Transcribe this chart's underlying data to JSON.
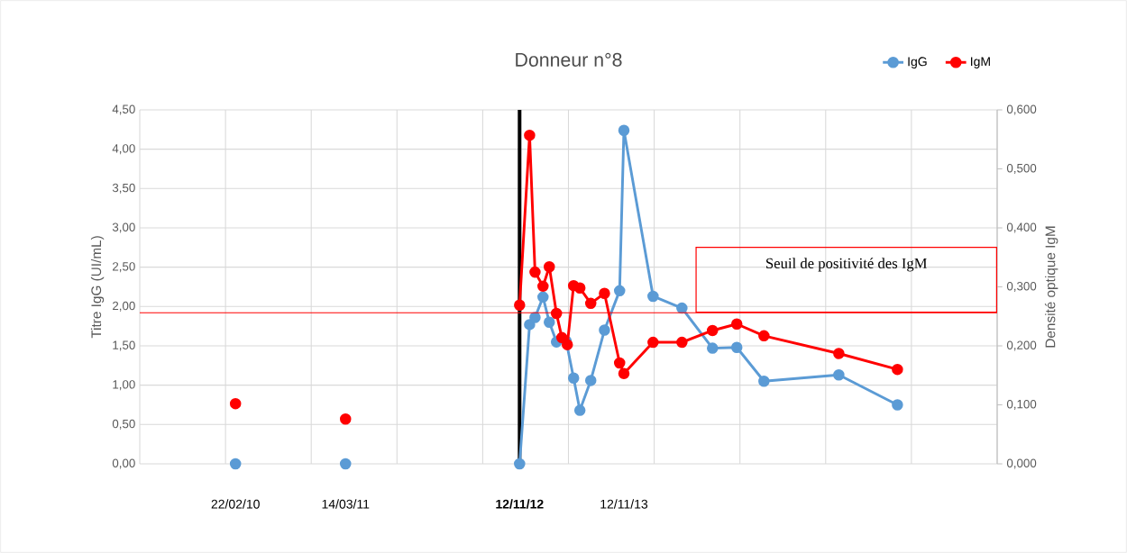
{
  "chart_data": {
    "type": "line",
    "title": "Donneur n°8",
    "ylabel": "Titre IgG (UI/mL)",
    "y2label": "Densité optique IgM",
    "xlim": [
      "2009-03-24",
      "2017-06-10"
    ],
    "xticks": [
      {
        "value": "2009-03-24",
        "label": null
      },
      {
        "value": "2010-01-18",
        "label": null
      },
      {
        "value": "2010-11-14",
        "label": null
      },
      {
        "value": "2011-09-10",
        "label": null
      },
      {
        "value": "2012-07-06",
        "label": null
      },
      {
        "value": "2013-05-02",
        "label": null
      },
      {
        "value": "2014-02-26",
        "label": null
      },
      {
        "value": "2014-12-23",
        "label": null
      },
      {
        "value": "2015-10-19",
        "label": null
      },
      {
        "value": "2016-08-14",
        "label": null
      },
      {
        "value": "2017-06-10",
        "label": null
      },
      {
        "value": "2010-02-22",
        "label": "22/02/10"
      },
      {
        "value": "2011-03-14",
        "label": "14/03/11"
      },
      {
        "value": "2012-11-12",
        "label": "**12/11/12**"
      },
      {
        "value": "2013-11-12",
        "label": "12/11/13"
      }
    ],
    "ylim": [
      0,
      4.5
    ],
    "yticks": [
      {
        "value": 0,
        "label": "0,00"
      },
      {
        "value": 0.5,
        "label": "0,50"
      },
      {
        "value": 1,
        "label": "1,00"
      },
      {
        "value": 1.5,
        "label": "1,50"
      },
      {
        "value": 2,
        "label": "2,00"
      },
      {
        "value": 2.5,
        "label": "2,50"
      },
      {
        "value": 3,
        "label": "3,00"
      },
      {
        "value": 3.5,
        "label": "3,50"
      },
      {
        "value": 4,
        "label": "4,00"
      },
      {
        "value": 4.5,
        "label": "4,50"
      }
    ],
    "y2lim": [
      0,
      0.6
    ],
    "y2ticks": [
      {
        "value": 0,
        "label": "0,000"
      },
      {
        "value": 0.1,
        "label": "0,100"
      },
      {
        "value": 0.2,
        "label": "0,200"
      },
      {
        "value": 0.3,
        "label": "0,300"
      },
      {
        "value": 0.4,
        "label": "0,400"
      },
      {
        "value": 0.5,
        "label": "0,500"
      },
      {
        "value": 0.6,
        "label": "0,600"
      }
    ],
    "series": [
      {
        "name": "IgG",
        "color": "#5b9bd5",
        "x": [
          "2012-11-12",
          "2012-12-17",
          "2013-01-05",
          "2013-02-02",
          "2013-02-24",
          "2013-03-21",
          "2013-04-24",
          "2013-05-20",
          "2013-06-11",
          "2013-07-19",
          "2013-09-05",
          "2013-10-28",
          "2013-11-12",
          "2014-02-22",
          "2014-06-03",
          "2014-09-18",
          "2014-12-12",
          "2015-03-17",
          "2015-12-04",
          "2016-06-26"
        ],
        "values": [
          0,
          1.77,
          1.86,
          2.12,
          1.8,
          1.55,
          1.56,
          1.09,
          0.68,
          1.06,
          1.7,
          2.2,
          4.24,
          2.13,
          1.98,
          1.47,
          1.48,
          1.05,
          1.13,
          0.75
        ]
      },
      {
        "name": "IgM",
        "color": "#ff0000",
        "axis": "y2",
        "x": [
          "2012-11-12",
          "2012-12-17",
          "2013-01-05",
          "2013-02-02",
          "2013-02-24",
          "2013-03-21",
          "2013-04-09",
          "2013-04-28",
          "2013-05-20",
          "2013-06-11",
          "2013-07-19",
          "2013-09-05",
          "2013-10-28",
          "2013-11-12",
          "2014-02-22",
          "2014-06-03",
          "2014-09-18",
          "2014-12-12",
          "2015-03-17",
          "2015-12-04",
          "2016-06-26"
        ],
        "values": [
          0.269,
          0.557,
          0.325,
          0.301,
          0.334,
          0.255,
          0.214,
          0.202,
          0.302,
          0.298,
          0.272,
          0.289,
          0.171,
          0.153,
          0.206,
          0.206,
          0.226,
          0.237,
          0.217,
          0.187,
          0.16
        ]
      },
      {
        "type": "scatter",
        "color": "#5b9bd5",
        "x": [
          "2010-02-22",
          "2011-03-14"
        ],
        "values": [
          0,
          0
        ]
      },
      {
        "type": "scatter",
        "color": "#ff0000",
        "axis": "y2",
        "x": [
          "2010-02-22",
          "2011-03-14"
        ],
        "values": [
          0.102,
          0.076
        ]
      }
    ],
    "ref_lines": [
      {
        "axis": "x",
        "value": "2012-11-12",
        "color": "#000000"
      },
      {
        "axis": "y2",
        "value": 0.256,
        "label": "Seuil de positivité des IgM",
        "color": "#ff0000"
      }
    ],
    "grid": true,
    "legend": "top right",
    "marker": "circle",
    "line_style": "solid"
  }
}
